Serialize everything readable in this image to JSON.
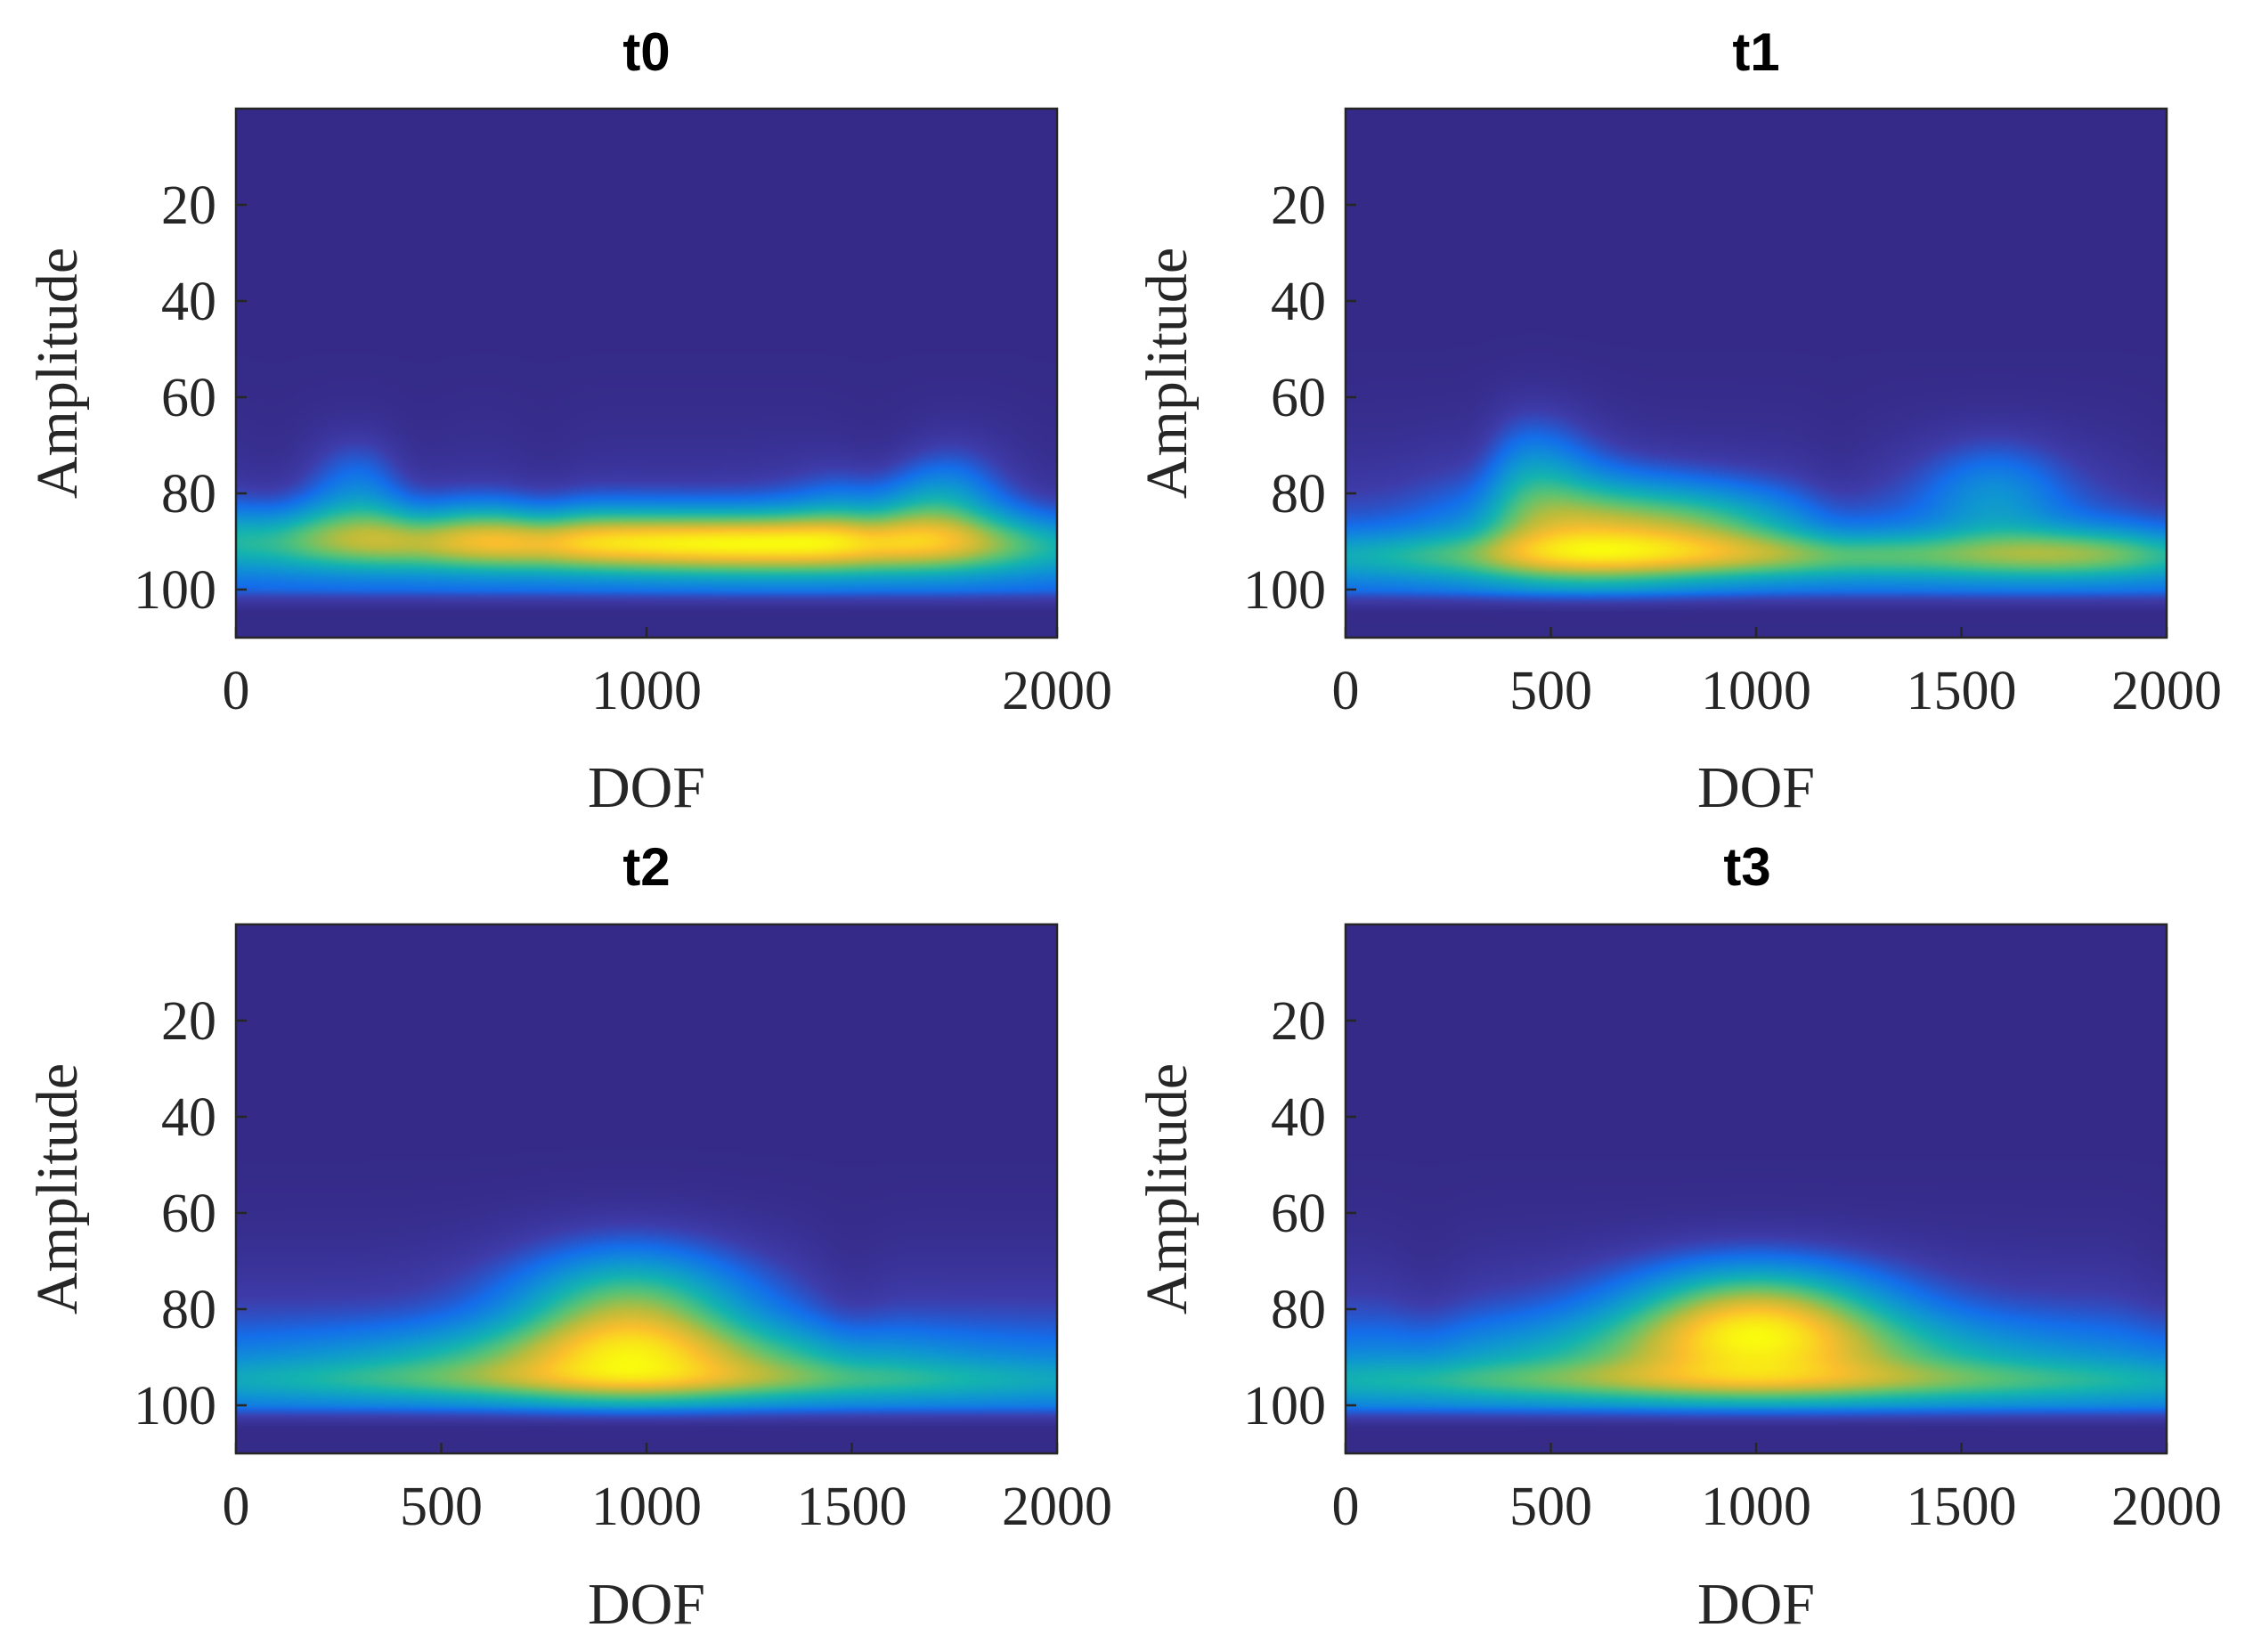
{
  "chart_data": [
    {
      "type": "heatmap",
      "title": "t0",
      "xlabel": "DOF",
      "ylabel": "Amplitude",
      "xlim": [
        0,
        2000
      ],
      "ylim": [
        0,
        110
      ],
      "y_direction": "reverse",
      "xticks": [
        0,
        1000,
        2000
      ],
      "yticks": [
        20,
        40,
        60,
        80,
        100
      ],
      "colormap": "parula",
      "blobs": [
        {
          "x": 1450,
          "y": 90,
          "sx": 420,
          "sy": 5,
          "amp": 1.0
        },
        {
          "x": 500,
          "y": 88,
          "sx": 500,
          "sy": 5,
          "amp": 0.85
        },
        {
          "x": 1000,
          "y": 91,
          "sx": 700,
          "sy": 4,
          "amp": 0.8
        },
        {
          "x": 1600,
          "y": 82,
          "sx": 150,
          "sy": 6,
          "amp": 0.55
        },
        {
          "x": 300,
          "y": 78,
          "sx": 90,
          "sy": 7,
          "amp": 0.45
        },
        {
          "x": 1750,
          "y": 80,
          "sx": 80,
          "sy": 8,
          "amp": 0.35
        }
      ],
      "edge_band": {
        "y": 95,
        "sy": 8,
        "amp": 0.55
      },
      "valleys": [
        450,
        750,
        1550,
        2000,
        90
      ]
    },
    {
      "type": "heatmap",
      "title": "t1",
      "xlabel": "DOF",
      "ylabel": "Amplitude",
      "xlim": [
        0,
        2000
      ],
      "ylim": [
        0,
        110
      ],
      "y_direction": "reverse",
      "xticks": [
        0,
        500,
        1000,
        1500,
        2000
      ],
      "yticks": [
        20,
        40,
        60,
        80,
        100
      ],
      "colormap": "parula",
      "blobs": [
        {
          "x": 580,
          "y": 87,
          "sx": 200,
          "sy": 8,
          "amp": 1.0
        },
        {
          "x": 450,
          "y": 75,
          "sx": 110,
          "sy": 9,
          "amp": 0.55
        },
        {
          "x": 900,
          "y": 86,
          "sx": 180,
          "sy": 6,
          "amp": 0.6
        },
        {
          "x": 1000,
          "y": 93,
          "sx": 900,
          "sy": 3.5,
          "amp": 0.75
        },
        {
          "x": 1580,
          "y": 80,
          "sx": 130,
          "sy": 8,
          "amp": 0.55
        },
        {
          "x": 1800,
          "y": 92,
          "sx": 180,
          "sy": 4,
          "amp": 0.4
        }
      ],
      "edge_band": {
        "y": 95,
        "sy": 8,
        "amp": 0.55
      },
      "valleys": [
        300,
        1200,
        2000
      ]
    },
    {
      "type": "heatmap",
      "title": "t2",
      "xlabel": "DOF",
      "ylabel": "Amplitude",
      "xlim": [
        0,
        2000
      ],
      "ylim": [
        0,
        110
      ],
      "y_direction": "reverse",
      "xticks": [
        0,
        500,
        1000,
        1500,
        2000
      ],
      "yticks": [
        20,
        40,
        60,
        80,
        100
      ],
      "colormap": "parula",
      "blobs": [
        {
          "x": 960,
          "y": 81,
          "sx": 210,
          "sy": 10,
          "amp": 1.0
        },
        {
          "x": 950,
          "y": 90,
          "sx": 480,
          "sy": 5,
          "amp": 0.5
        },
        {
          "x": 1000,
          "y": 95,
          "sx": 900,
          "sy": 3,
          "amp": 0.4
        }
      ],
      "edge_band": {
        "y": 95,
        "sy": 8,
        "amp": 0.45
      },
      "valleys": [
        1500
      ]
    },
    {
      "type": "heatmap",
      "title": "t3",
      "xlabel": "DOF",
      "ylabel": "Amplitude",
      "xlim": [
        0,
        2000
      ],
      "ylim": [
        0,
        110
      ],
      "y_direction": "reverse",
      "xticks": [
        0,
        500,
        1000,
        1500,
        2000
      ],
      "yticks": [
        20,
        40,
        60,
        80,
        100
      ],
      "colormap": "parula",
      "blobs": [
        {
          "x": 1000,
          "y": 81,
          "sx": 230,
          "sy": 8,
          "amp": 1.0
        },
        {
          "x": 1000,
          "y": 89,
          "sx": 450,
          "sy": 6,
          "amp": 0.45
        },
        {
          "x": 1000,
          "y": 95,
          "sx": 900,
          "sy": 3,
          "amp": 0.4
        }
      ],
      "edge_band": {
        "y": 95,
        "sy": 8,
        "amp": 0.45
      },
      "valleys": [
        200,
        2000
      ]
    }
  ],
  "colors": {
    "axis": "#262626",
    "background": "#ffffff"
  }
}
